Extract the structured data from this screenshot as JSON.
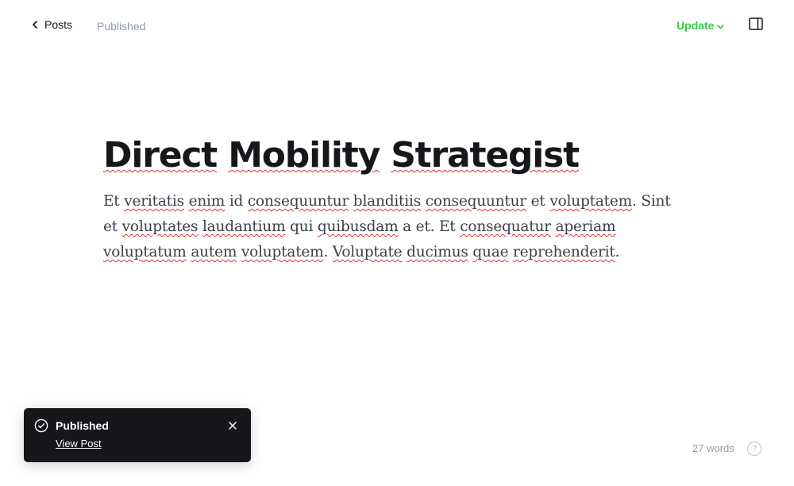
{
  "header": {
    "back_label": "Posts",
    "status": "Published",
    "update_label": "Update"
  },
  "post": {
    "title": "Direct Mobility Strategist",
    "body_words": [
      {
        "t": "Et",
        "s": false
      },
      {
        "t": "veritatis",
        "s": true
      },
      {
        "t": "enim",
        "s": true
      },
      {
        "t": "id",
        "s": false
      },
      {
        "t": "consequuntur",
        "s": true
      },
      {
        "t": "blanditiis",
        "s": true
      },
      {
        "t": "consequuntur",
        "s": true
      },
      {
        "t": "et",
        "s": false
      },
      {
        "t": "voluptatem",
        "s": true
      },
      {
        "t": ". Sint et",
        "s": false
      },
      {
        "t": "voluptates",
        "s": true
      },
      {
        "t": "laudantium",
        "s": true
      },
      {
        "t": "qui",
        "s": false
      },
      {
        "t": "quibusdam",
        "s": true
      },
      {
        "t": "a et. Et",
        "s": false
      },
      {
        "t": "consequatur",
        "s": true
      },
      {
        "t": "aperiam",
        "s": true
      },
      {
        "t": "voluptatum",
        "s": true
      },
      {
        "t": "autem",
        "s": true
      },
      {
        "t": "voluptatem",
        "s": true
      },
      {
        "t": ".",
        "s": false
      },
      {
        "t": "Voluptate",
        "s": true
      },
      {
        "t": "ducimus",
        "s": true
      },
      {
        "t": "quae",
        "s": true
      },
      {
        "t": "reprehenderit",
        "s": true
      },
      {
        "t": ".",
        "s": false
      }
    ]
  },
  "footer": {
    "word_count": "27 words",
    "help_symbol": "?"
  },
  "toast": {
    "title": "Published",
    "link_label": "View Post"
  },
  "colors": {
    "accent_green": "#30cf43",
    "toast_bg": "#15171a",
    "muted_text": "#8e9cac",
    "spellcheck_red": "#e0302b"
  },
  "icons": {
    "back": "chevron-left-icon",
    "update_dropdown": "chevron-down-icon",
    "sidebar": "sidebar-panel-icon",
    "toast_status": "check-circle-icon",
    "toast_close": "close-icon",
    "help": "help-circle-icon"
  }
}
